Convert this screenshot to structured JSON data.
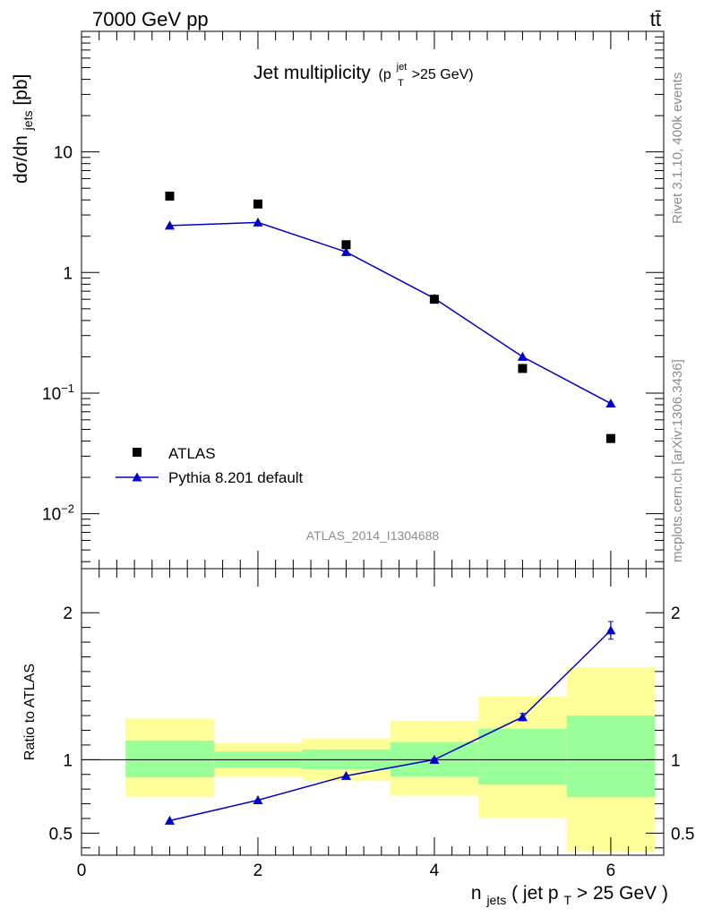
{
  "header": {
    "left": "7000 GeV pp",
    "right": "tt̄"
  },
  "chart_data": [
    {
      "type": "scatter",
      "panel": "main",
      "title": "Jet multiplicity",
      "title_sub_prefix": "(p",
      "title_sub_sup": "jet",
      "title_sub_sub": "T",
      "title_sub_suffix": ">25 GeV)",
      "ylabel": "dσ/dn",
      "ylabel_sub": "jets",
      "ylabel_suffix": " [pb]",
      "y_scale": "log",
      "ylim": [
        0.0035,
        100
      ],
      "xlim": [
        0,
        6.6
      ],
      "y_ticks": [
        {
          "value": 0.01,
          "base": "10",
          "exp": "−2"
        },
        {
          "value": 0.1,
          "base": "10",
          "exp": "−1"
        },
        {
          "value": 1,
          "base": "1",
          "exp": ""
        },
        {
          "value": 10,
          "base": "10",
          "exp": ""
        }
      ],
      "series": [
        {
          "name": "ATLAS",
          "marker": "square",
          "color": "#000000",
          "x": [
            1,
            2,
            3,
            4,
            5,
            6
          ],
          "y": [
            4.3,
            3.7,
            1.7,
            0.6,
            0.16,
            0.042
          ]
        },
        {
          "name": "Pythia 8.201 default",
          "marker": "triangle",
          "color": "#0000cc",
          "line": true,
          "x": [
            1,
            2,
            3,
            4,
            5,
            6
          ],
          "y": [
            2.45,
            2.6,
            1.48,
            0.61,
            0.2,
            0.082
          ]
        }
      ],
      "legend_position": "bottom-left",
      "watermark": "ATLAS_2014_I1304688"
    },
    {
      "type": "line",
      "panel": "ratio",
      "ylabel": "Ratio to ATLAS",
      "ylim": [
        0.35,
        2.3
      ],
      "xlim": [
        0,
        6.6
      ],
      "xlabel": "n",
      "xlabel_sub": "jets",
      "xlabel_mid": " ( jet p",
      "xlabel_sub2": "T",
      "xlabel_suffix": " > 25 GeV )",
      "x_ticks": [
        0,
        2,
        4,
        6
      ],
      "y_ticks": [
        0.5,
        1,
        2
      ],
      "y_tick_labels": [
        "0.5",
        "1",
        "2"
      ],
      "reference_line": 1,
      "bands": [
        {
          "x0": 0.5,
          "x1": 1.5,
          "green": [
            0.88,
            1.13
          ],
          "yellow": [
            0.745,
            1.28
          ]
        },
        {
          "x0": 1.5,
          "x1": 2.5,
          "green": [
            0.945,
            1.055
          ],
          "yellow": [
            0.885,
            1.115
          ]
        },
        {
          "x0": 2.5,
          "x1": 3.5,
          "green": [
            0.935,
            1.07
          ],
          "yellow": [
            0.855,
            1.145
          ]
        },
        {
          "x0": 3.5,
          "x1": 4.5,
          "green": [
            0.885,
            1.12
          ],
          "yellow": [
            0.755,
            1.265
          ]
        },
        {
          "x0": 4.5,
          "x1": 5.5,
          "green": [
            0.83,
            1.21
          ],
          "yellow": [
            0.605,
            1.43
          ]
        },
        {
          "x0": 5.5,
          "x1": 6.5,
          "green": [
            0.745,
            1.3
          ],
          "yellow": [
            0.375,
            1.63
          ]
        }
      ],
      "series": [
        {
          "name": "Pythia 8.201 default",
          "color": "#0000cc",
          "x": [
            1,
            2,
            3,
            4,
            5,
            6
          ],
          "y": [
            0.585,
            0.725,
            0.89,
            1.0,
            1.29,
            1.88
          ],
          "yerr": [
            0.006,
            0.007,
            0.008,
            0.01,
            0.025,
            0.06
          ]
        }
      ]
    }
  ],
  "side_labels": {
    "top": "Rivet 3.1.10,  400k events",
    "bottom": "mcplots.cern.ch [arXiv:1306.3436]"
  },
  "colors": {
    "green_band": "#99ff99",
    "yellow_band": "#ffff99",
    "mc": "#0000cc",
    "data": "#000000"
  }
}
